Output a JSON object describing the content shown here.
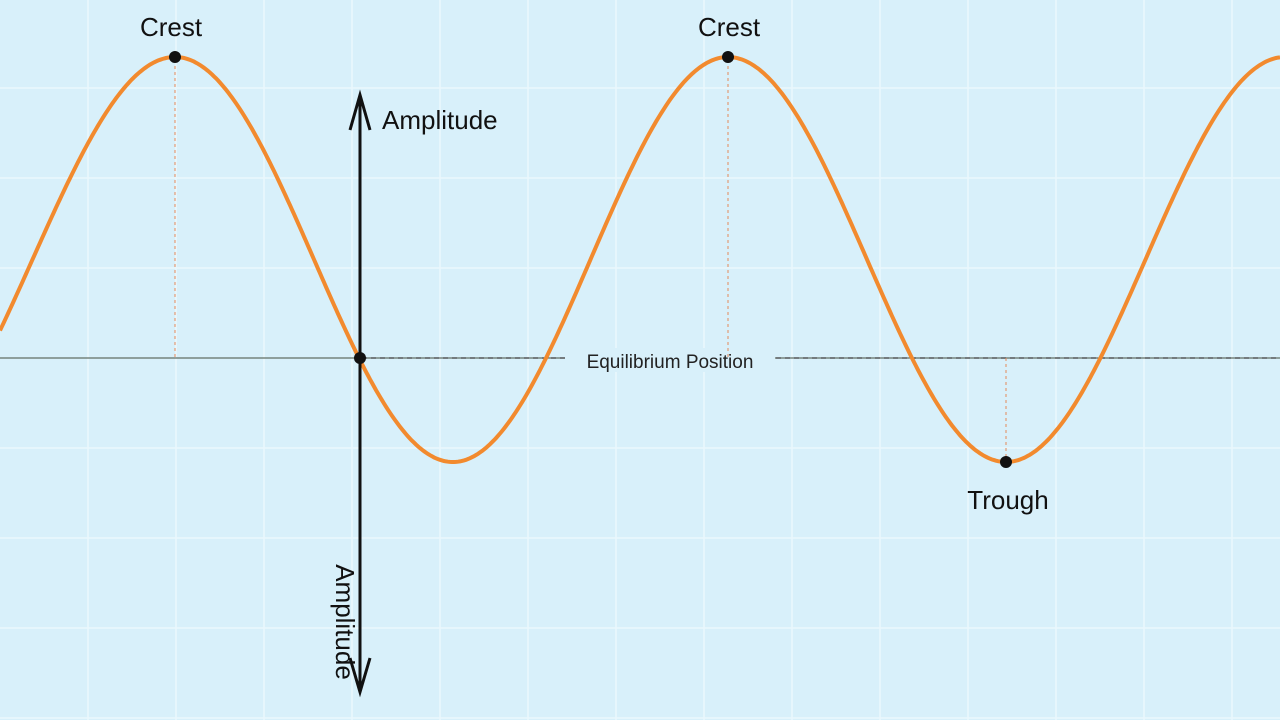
{
  "labels": {
    "crest_left": "Crest",
    "crest_right": "Crest",
    "amplitude": "Amplitude",
    "amplitude_vertical": "Amplitude",
    "equilibrium": "Equilibrium Position",
    "trough": "Trough"
  }
}
